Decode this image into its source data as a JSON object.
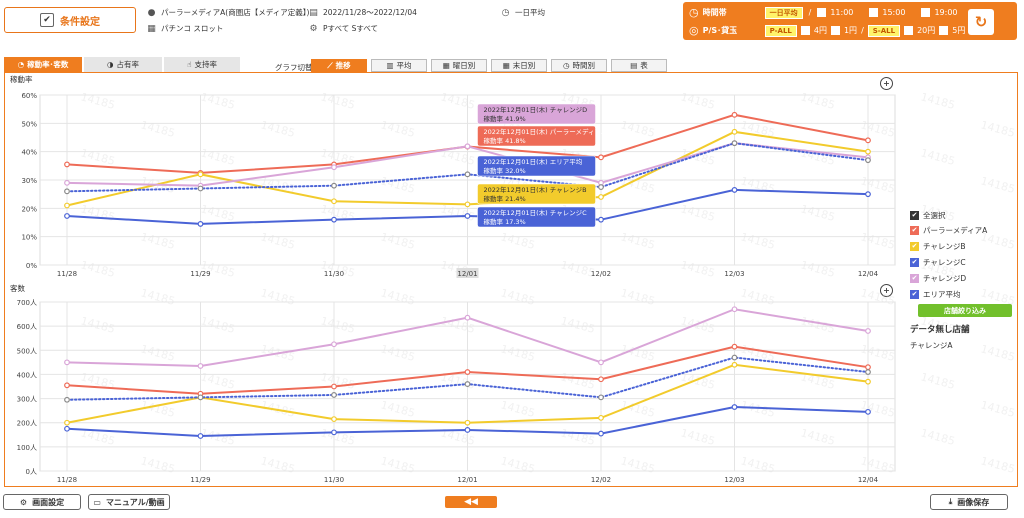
{
  "header": {
    "condition_button": "条件設定",
    "store": "パーラーメディアA(商圏店【メディア定義】)",
    "period": "2022/11/28～2022/12/04",
    "average": "一日平均",
    "machine_type": "パチンコ スロット",
    "machine_filter": "Pすべて Sすべて"
  },
  "time_panel": {
    "time_label": "時間帯",
    "time_selected": "一日平均",
    "separator": "/",
    "time_options": [
      "11:00",
      "15:00",
      "19:00"
    ],
    "ps_label": "P/S･貸玉",
    "p_selected": "P-ALL",
    "p_options": [
      "4円",
      "1円"
    ],
    "s_selected": "S-ALL",
    "s_options": [
      "20円",
      "5円"
    ]
  },
  "tabs": [
    {
      "label": "稼動率･客数",
      "icon": "gauge-icon"
    },
    {
      "label": "占有率",
      "icon": "pie-icon"
    },
    {
      "label": "支持率",
      "icon": "thumb-icon"
    }
  ],
  "graph_switch": {
    "label": "グラフ切替",
    "options": [
      {
        "label": "推移",
        "active": true
      },
      {
        "label": "平均",
        "active": false
      },
      {
        "label": "曜日別",
        "active": false
      },
      {
        "label": "末日別",
        "active": false
      },
      {
        "label": "時間別",
        "active": false
      },
      {
        "label": "表",
        "active": false
      }
    ]
  },
  "legend": {
    "select_all": "全選択",
    "items": [
      {
        "name": "パーラーメディアA",
        "color": "#ee6b57"
      },
      {
        "name": "チャレンジB",
        "color": "#f2cb2c"
      },
      {
        "name": "チャレンジC",
        "color": "#4a63d6"
      },
      {
        "name": "チャレンジD",
        "color": "#d9a5d8"
      },
      {
        "name": "エリア平均",
        "color": "#4a63d6"
      }
    ],
    "filter_button": "店舗絞り込み",
    "no_data_title": "データ無し店舗",
    "no_data_store": "チャレンジA"
  },
  "chart_data": [
    {
      "type": "line",
      "title": "稼動率",
      "x": [
        "11/28",
        "11/29",
        "11/30",
        "12/01",
        "12/02",
        "12/03",
        "12/04"
      ],
      "ylim": [
        0,
        60
      ],
      "yticks": [
        "0%",
        "10%",
        "20%",
        "30%",
        "40%",
        "50%",
        "60%"
      ],
      "highlighted_x": "12/01",
      "series": [
        {
          "name": "パーラーメディアA",
          "color": "#ee6b57",
          "dotted": false,
          "values": [
            35.5,
            32.5,
            35.5,
            41.8,
            38,
            53,
            44
          ]
        },
        {
          "name": "チャレンジB",
          "color": "#f2cb2c",
          "dotted": false,
          "values": [
            21,
            32,
            22.5,
            21.4,
            24,
            47,
            40
          ]
        },
        {
          "name": "チャレンジC",
          "color": "#4a63d6",
          "dotted": false,
          "values": [
            17.3,
            14.5,
            16,
            17.3,
            16,
            26.5,
            25
          ]
        },
        {
          "name": "チャレンジD",
          "color": "#d9a5d8",
          "dotted": false,
          "values": [
            29,
            28,
            34.5,
            41.9,
            29,
            43,
            38
          ]
        },
        {
          "name": "エリア平均",
          "color": "#4a63d6",
          "dotted": true,
          "values": [
            26,
            27,
            28,
            32,
            27.5,
            43,
            37
          ]
        }
      ],
      "tooltips": [
        {
          "line1": "2022年12月01日(木) チャレンジD",
          "line2": "稼動率 41.9%",
          "series": "チャレンジD",
          "color": "#d9a5d8",
          "text": "#333333"
        },
        {
          "line1": "2022年12月01日(木) パーラーメディアA",
          "line2": "稼動率 41.8%",
          "series": "パーラーメディアA",
          "color": "#ee6b57",
          "text": "#ffffff"
        },
        {
          "line1": "2022年12月01日(木) エリア平均",
          "line2": "稼動率 32.0%",
          "series": "エリア平均",
          "color": "#4a63d6",
          "text": "#ffffff"
        },
        {
          "line1": "2022年12月01日(木) チャレンジB",
          "line2": "稼動率 21.4%",
          "series": "チャレンジB",
          "color": "#f2cb2c",
          "text": "#333333"
        },
        {
          "line1": "2022年12月01日(木) チャレンジC",
          "line2": "稼動率 17.3%",
          "series": "チャレンジC",
          "color": "#4a63d6",
          "text": "#ffffff"
        }
      ]
    },
    {
      "type": "line",
      "title": "客数",
      "x": [
        "11/28",
        "11/29",
        "11/30",
        "12/01",
        "12/02",
        "12/03",
        "12/04"
      ],
      "ylim": [
        0,
        700
      ],
      "yticks": [
        "0人",
        "100人",
        "200人",
        "300人",
        "400人",
        "500人",
        "600人",
        "700人"
      ],
      "series": [
        {
          "name": "パーラーメディアA",
          "color": "#ee6b57",
          "dotted": false,
          "values": [
            355,
            320,
            350,
            410,
            380,
            515,
            430
          ]
        },
        {
          "name": "チャレンジB",
          "color": "#f2cb2c",
          "dotted": false,
          "values": [
            200,
            305,
            215,
            200,
            220,
            440,
            370
          ]
        },
        {
          "name": "チャレンジC",
          "color": "#4a63d6",
          "dotted": false,
          "values": [
            175,
            145,
            160,
            170,
            155,
            265,
            245
          ]
        },
        {
          "name": "チャレンジD",
          "color": "#d9a5d8",
          "dotted": false,
          "values": [
            450,
            435,
            525,
            635,
            450,
            670,
            580
          ]
        },
        {
          "name": "エリア平均",
          "color": "#4a63d6",
          "dotted": true,
          "values": [
            295,
            305,
            315,
            360,
            305,
            470,
            410
          ]
        }
      ]
    }
  ],
  "bottom": {
    "screen_settings": "画面設定",
    "manual": "マニュアル/動画",
    "prev": "◀◀",
    "save_image": "画像保存"
  },
  "watermark": "14185"
}
